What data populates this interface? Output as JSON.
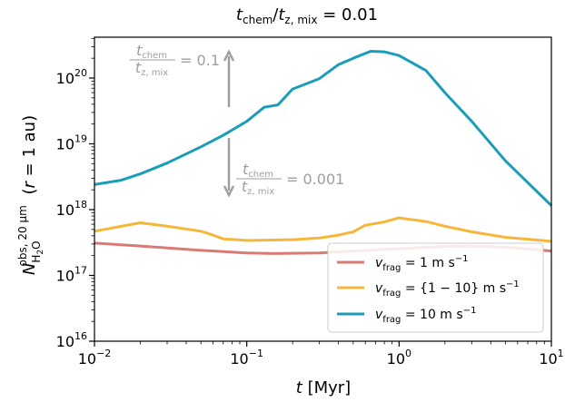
{
  "chart_data": {
    "type": "line",
    "title": "t_chem / t_z,mix = 0.01",
    "xlabel": "t [Myr]",
    "ylabel": "N_H2O^obs, 20 μm (r = 1 au)",
    "xscale": "log",
    "yscale": "log",
    "xlim": [
      0.01,
      10
    ],
    "ylim": [
      1e+16,
      5e+20
    ],
    "x_ticks": [
      {
        "value": 0.01,
        "label": "10^-2"
      },
      {
        "value": 0.1,
        "label": "10^-1"
      },
      {
        "value": 1,
        "label": "10^0"
      },
      {
        "value": 10,
        "label": "10^1"
      }
    ],
    "y_ticks": [
      {
        "value": 1e+16,
        "label": "10^16"
      },
      {
        "value": 1e+17,
        "label": "10^17"
      },
      {
        "value": 1e+18,
        "label": "10^18"
      },
      {
        "value": 1e+19,
        "label": "10^19"
      },
      {
        "value": 1e+20,
        "label": "10^20"
      }
    ],
    "legend_position": "lower-right",
    "series": [
      {
        "name": "v_frag = 1 m s^-1",
        "color": "#d97a73",
        "points": [
          [
            0.01,
            3.1e+17
          ],
          [
            0.02,
            2.8e+17
          ],
          [
            0.05,
            2.4e+17
          ],
          [
            0.1,
            2.2e+17
          ],
          [
            0.15,
            2.15e+17
          ],
          [
            0.3,
            2.2e+17
          ],
          [
            0.5,
            2.35e+17
          ],
          [
            1,
            2.55e+17
          ],
          [
            2,
            2.75e+17
          ],
          [
            3,
            2.8e+17
          ],
          [
            5,
            2.7e+17
          ],
          [
            10,
            2.35e+17
          ]
        ]
      },
      {
        "name": "v_frag = {1-10} m s^-1",
        "color": "#f5b73b",
        "points": [
          [
            0.01,
            4.7e+17
          ],
          [
            0.02,
            6.3e+17
          ],
          [
            0.03,
            5.6e+17
          ],
          [
            0.05,
            4.7e+17
          ],
          [
            0.06,
            4.1e+17
          ],
          [
            0.07,
            3.6e+17
          ],
          [
            0.1,
            3.4e+17
          ],
          [
            0.2,
            3.5e+17
          ],
          [
            0.3,
            3.7e+17
          ],
          [
            0.4,
            4.1e+17
          ],
          [
            0.5,
            4.6e+17
          ],
          [
            0.6,
            5.8e+17
          ],
          [
            0.8,
            6.5e+17
          ],
          [
            1,
            7.5e+17
          ],
          [
            1.5,
            6.6e+17
          ],
          [
            2,
            5.6e+17
          ],
          [
            3,
            4.6e+17
          ],
          [
            5,
            3.8e+17
          ],
          [
            10,
            3.3e+17
          ]
        ]
      },
      {
        "name": "v_frag = 10 m s^-1",
        "color": "#1a9db8",
        "points": [
          [
            0.01,
            2.4e+18
          ],
          [
            0.015,
            2.8e+18
          ],
          [
            0.02,
            3.5e+18
          ],
          [
            0.03,
            5.1e+18
          ],
          [
            0.05,
            9e+18
          ],
          [
            0.07,
            1.35e+19
          ],
          [
            0.1,
            2.2e+19
          ],
          [
            0.13,
            3.6e+19
          ],
          [
            0.16,
            3.9e+19
          ],
          [
            0.2,
            6.8e+19
          ],
          [
            0.25,
            8.3e+19
          ],
          [
            0.3,
            9.8e+19
          ],
          [
            0.4,
            1.6e+20
          ],
          [
            0.5,
            2e+20
          ],
          [
            0.65,
            2.55e+20
          ],
          [
            0.8,
            2.5e+20
          ],
          [
            1,
            2.2e+20
          ],
          [
            1.5,
            1.3e+20
          ],
          [
            2,
            6e+19
          ],
          [
            3,
            2.2e+19
          ],
          [
            5,
            5.5e+18
          ],
          [
            10,
            1.15e+18
          ]
        ]
      }
    ],
    "annotations": [
      {
        "text_num": "t_chem",
        "text_den": "t_z,mix",
        "text_val": "= 0.1",
        "arrow": "up"
      },
      {
        "text_num": "t_chem",
        "text_den": "t_z,mix",
        "text_val": "= 0.001",
        "arrow": "down"
      }
    ]
  }
}
